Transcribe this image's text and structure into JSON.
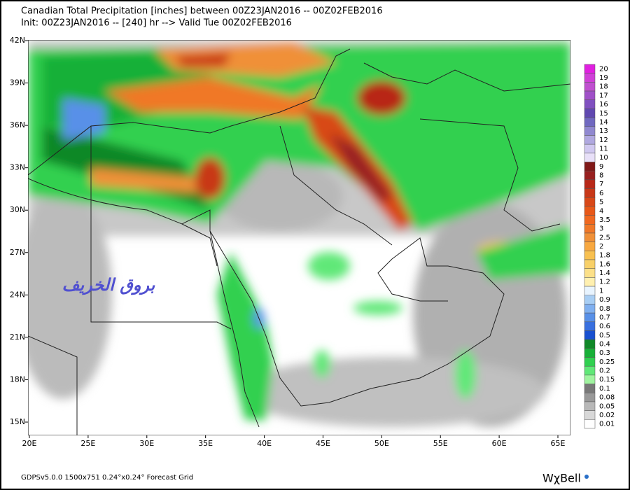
{
  "header": {
    "title": "Canadian Total Precipitation [inches] between 00Z23JAN2016 -- 00Z02FEB2016",
    "subtitle": "Init: 00Z23JAN2016 -- [240] hr --> Valid Tue 00Z02FEB2016"
  },
  "map": {
    "lat_labels": [
      "42N",
      "39N",
      "36N",
      "33N",
      "30N",
      "27N",
      "24N",
      "21N",
      "18N",
      "15N"
    ],
    "lon_labels": [
      "20E",
      "25E",
      "30E",
      "35E",
      "40E",
      "45E",
      "50E",
      "55E",
      "60E",
      "65E"
    ],
    "watermark": "بروق الخريف"
  },
  "legend": {
    "levels": [
      {
        "value": 20,
        "color": "#e020e0"
      },
      {
        "value": 19,
        "color": "#d040d8"
      },
      {
        "value": 18,
        "color": "#c050d0"
      },
      {
        "value": 17,
        "color": "#a050c8"
      },
      {
        "value": 16,
        "color": "#8050c0"
      },
      {
        "value": 15,
        "color": "#6048b0"
      },
      {
        "value": 14,
        "color": "#7068c0"
      },
      {
        "value": 13,
        "color": "#9088d0"
      },
      {
        "value": 12,
        "color": "#b0a8e0"
      },
      {
        "value": 11,
        "color": "#d0c8f0"
      },
      {
        "value": 10,
        "color": "#e8e0f8"
      },
      {
        "value": 9,
        "color": "#801818"
      },
      {
        "value": 8,
        "color": "#982020"
      },
      {
        "value": 7,
        "color": "#b82818"
      },
      {
        "value": 6,
        "color": "#c83818"
      },
      {
        "value": 5,
        "color": "#d84818"
      },
      {
        "value": 4,
        "color": "#e85818"
      },
      {
        "value": 3.5,
        "color": "#f06820"
      },
      {
        "value": 3,
        "color": "#f07828"
      },
      {
        "value": 2.5,
        "color": "#f09038"
      },
      {
        "value": 2,
        "color": "#f8a840"
      },
      {
        "value": 1.8,
        "color": "#f8c050"
      },
      {
        "value": 1.6,
        "color": "#f8d068"
      },
      {
        "value": 1.4,
        "color": "#fce088"
      },
      {
        "value": 1.2,
        "color": "#fff0b0"
      },
      {
        "value": 1,
        "color": "#e8f4ff"
      },
      {
        "value": 0.9,
        "color": "#a8cef4"
      },
      {
        "value": 0.8,
        "color": "#80b0f0"
      },
      {
        "value": 0.7,
        "color": "#5890e8"
      },
      {
        "value": 0.6,
        "color": "#3870e0"
      },
      {
        "value": 0.5,
        "color": "#1850d0"
      },
      {
        "value": 0.4,
        "color": "#108828"
      },
      {
        "value": 0.3,
        "color": "#18b038"
      },
      {
        "value": 0.25,
        "color": "#30d050"
      },
      {
        "value": 0.2,
        "color": "#60e878"
      },
      {
        "value": 0.15,
        "color": "#a0f4a0"
      },
      {
        "value": 0.1,
        "color": "#787878"
      },
      {
        "value": 0.08,
        "color": "#989898"
      },
      {
        "value": 0.05,
        "color": "#b8b8b8"
      },
      {
        "value": 0.02,
        "color": "#d8d8d8"
      },
      {
        "value": 0.01,
        "color": "#ffffff"
      }
    ]
  },
  "footer": {
    "grid_info": "GDPSv5.0.0 1500x751 0.24°x0.24° Forecast Grid",
    "logo": "WχBell"
  }
}
